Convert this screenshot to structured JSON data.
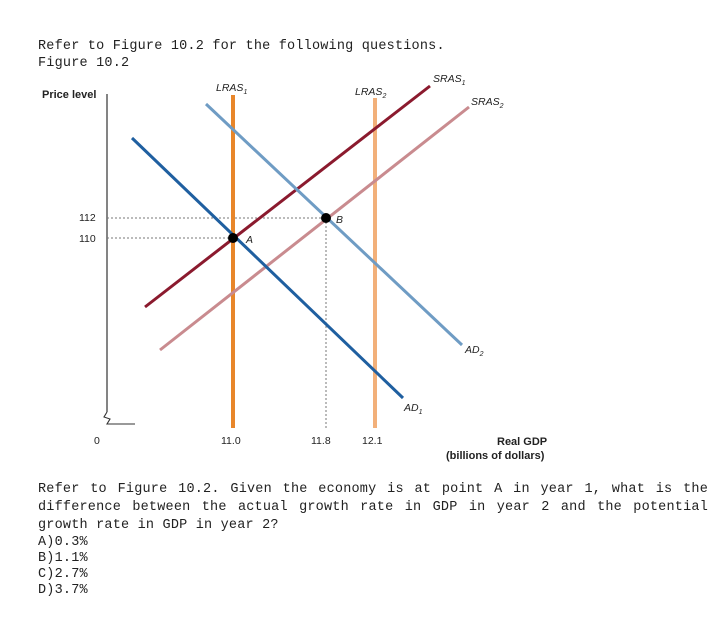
{
  "header": {
    "intro": "Refer to Figure 10.2 for the following questions.",
    "figure_label": "Figure 10.2"
  },
  "chart_data": {
    "type": "line",
    "ylabel": "Price level",
    "xlabel": "Real GDP",
    "xlabel_sub": "(billions of dollars)",
    "origin_label": "0",
    "x_ticks": [
      "11.0",
      "11.8",
      "12.1"
    ],
    "y_ticks": [
      "112",
      "110"
    ],
    "lines": [
      {
        "name": "LRAS",
        "sub": "1",
        "kind": "vertical",
        "x": 11.0,
        "color": "#e8862a"
      },
      {
        "name": "LRAS",
        "sub": "2",
        "kind": "vertical",
        "x": 12.1,
        "color": "#f2b07a"
      },
      {
        "name": "SRAS",
        "sub": "1",
        "kind": "upward",
        "color": "#8b1a2e"
      },
      {
        "name": "SRAS",
        "sub": "2",
        "kind": "upward",
        "color": "#c98b8f"
      },
      {
        "name": "AD",
        "sub": "1",
        "kind": "downward",
        "color": "#1f5fa0"
      },
      {
        "name": "AD",
        "sub": "2",
        "kind": "downward",
        "color": "#6f9cc4"
      }
    ],
    "points": [
      {
        "label": "A",
        "x": 11.0,
        "y": 110
      },
      {
        "label": "B",
        "x": 11.8,
        "y": 112
      }
    ]
  },
  "question": {
    "text": "Refer to Figure 10.2. Given the economy is at point A in year 1, what is the difference between the actual growth rate in GDP in year 2 and the potential growth rate in GDP in year 2?",
    "answers": [
      "A)0.3%",
      "B)1.1%",
      "C)2.7%",
      "D)3.7%"
    ]
  }
}
